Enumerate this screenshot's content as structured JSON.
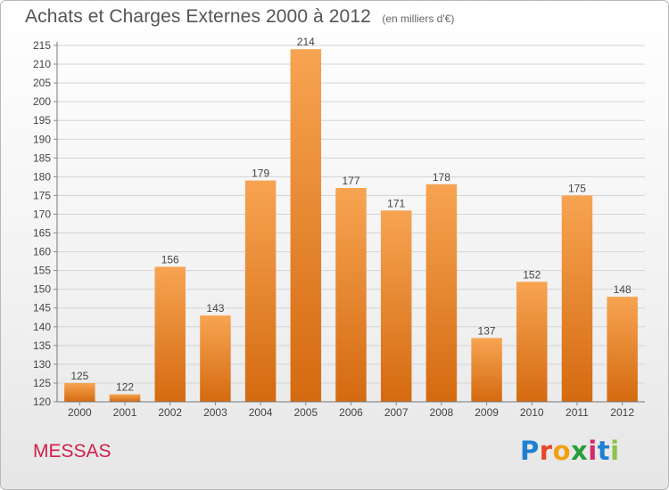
{
  "header": {
    "title": "Achats et Charges Externes 2000 à 2012",
    "subtitle": "(en milliers d'€)"
  },
  "footer": {
    "town": "MESSAS",
    "brand_letters": [
      "P",
      "r",
      "o",
      "x",
      "i",
      "t",
      "i"
    ],
    "brand_colors": [
      "#1f7fd0",
      "#e8462a",
      "#f0a010",
      "#2a9d3a",
      "#d62a6a",
      "#1f7fd0",
      "#8bc34a"
    ]
  },
  "chart_data": {
    "type": "bar",
    "categories": [
      "2000",
      "2001",
      "2002",
      "2003",
      "2004",
      "2005",
      "2006",
      "2007",
      "2008",
      "2009",
      "2010",
      "2011",
      "2012"
    ],
    "values": [
      125,
      122,
      156,
      143,
      179,
      214,
      177,
      171,
      178,
      137,
      152,
      175,
      148
    ],
    "ylim": [
      120,
      215
    ],
    "yticks": [
      120,
      125,
      130,
      135,
      140,
      145,
      150,
      155,
      160,
      165,
      170,
      175,
      180,
      185,
      190,
      195,
      200,
      205,
      210,
      215
    ],
    "grid": true,
    "bar_color_top": "#f7a452",
    "bar_color_bottom": "#d46a10",
    "data_labels": true
  }
}
